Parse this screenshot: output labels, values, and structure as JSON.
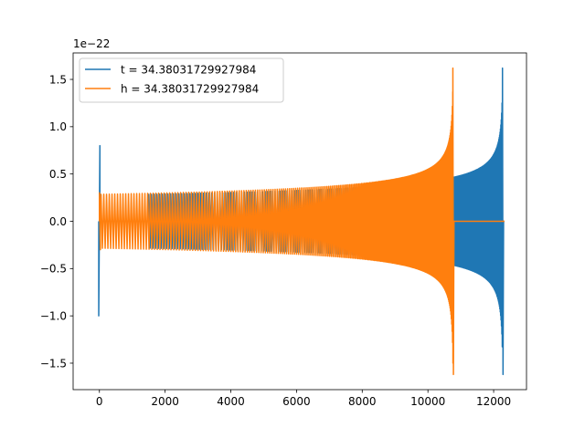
{
  "chart_data": {
    "type": "line",
    "title": "",
    "xlabel": "",
    "ylabel": "",
    "y_offset_label": "1e−22",
    "xlim": [
      -800,
      13000
    ],
    "ylim": [
      -1.78,
      1.78
    ],
    "x_ticks": [
      0,
      2000,
      4000,
      6000,
      8000,
      10000,
      12000
    ],
    "x_tick_labels": [
      "0",
      "2000",
      "4000",
      "6000",
      "8000",
      "10000",
      "12000"
    ],
    "y_ticks": [
      -1.5,
      -1.0,
      -0.5,
      0.0,
      0.5,
      1.0,
      1.5
    ],
    "y_tick_labels": [
      "−1.5",
      "−1.0",
      "−0.5",
      "0.0",
      "0.5",
      "1.0",
      "1.5"
    ],
    "grid": false,
    "legend_position": "upper-left",
    "series": [
      {
        "name": "t = 34.38031729927984",
        "color": "#1f77b4",
        "signal": {
          "pulse": {
            "x": [
              -20,
              15
            ],
            "y": [
              -1.0,
              0.8
            ]
          },
          "flat_until": 1500,
          "chirp_start": 1500,
          "merger_x": 12280,
          "peak": 1.62,
          "base_amplitude": 0.29,
          "ringdown_end": 12330
        }
      },
      {
        "name": "h = 34.38031729927984",
        "color": "#ff7f0e",
        "signal": {
          "pulse": {
            "x": [
              0,
              30
            ],
            "y": [
              0.3,
              -0.3
            ]
          },
          "chirp_start": 50,
          "merger_x": 10770,
          "peak": 1.62,
          "base_amplitude": 0.29,
          "post_merger_flat_until": 12330
        }
      }
    ]
  }
}
